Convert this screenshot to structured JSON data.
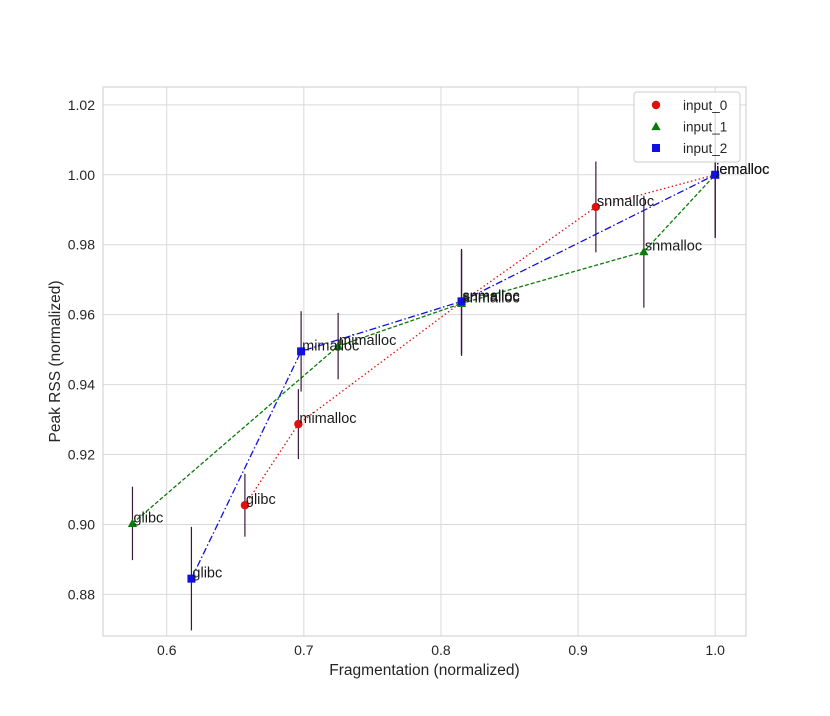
{
  "chart_data": {
    "type": "scatter",
    "title": "",
    "xlabel": "Fragmentation (normalized)",
    "ylabel": "Peak RSS (normalized)",
    "xlim": [
      0.5535,
      1.0225
    ],
    "ylim": [
      0.8681,
      1.0251
    ],
    "xticks": [
      0.6,
      0.7,
      0.8,
      0.9,
      1.0
    ],
    "xtick_labels": [
      "0.6",
      "0.7",
      "0.8",
      "0.9",
      "1.0"
    ],
    "yticks": [
      0.88,
      0.9,
      0.92,
      0.94,
      0.96,
      0.98,
      1.0,
      1.02
    ],
    "ytick_labels": [
      "0.88",
      "0.90",
      "0.92",
      "0.94",
      "0.96",
      "0.98",
      "1.00",
      "1.02"
    ],
    "grid": true,
    "legend_position": "top-right",
    "series": [
      {
        "name": "input_0",
        "color": "#e01010",
        "marker": "circle",
        "line_style": "dotted",
        "points": [
          {
            "label": "glibc",
            "x": 0.657,
            "y": 0.9055,
            "err": 0.009
          },
          {
            "label": "mimalloc",
            "x": 0.696,
            "y": 0.9287,
            "err": 0.01
          },
          {
            "label": "snmalloc",
            "x": 0.815,
            "y": 0.9636,
            "err": 0.015
          },
          {
            "label": "snmalloc",
            "x": 0.913,
            "y": 0.9908,
            "err": 0.013
          },
          {
            "label": "jemalloc",
            "x": 1.0,
            "y": 1.0,
            "err": 0.018
          }
        ]
      },
      {
        "name": "input_1",
        "color": "#0a7a0a",
        "marker": "triangle",
        "line_style": "dashed",
        "points": [
          {
            "label": "glibc",
            "x": 0.575,
            "y": 0.9003,
            "err": 0.0105
          },
          {
            "label": "mimalloc",
            "x": 0.725,
            "y": 0.951,
            "err": 0.0095
          },
          {
            "label": "snmalloc",
            "x": 0.815,
            "y": 0.9632,
            "err": 0.015
          },
          {
            "label": "snmalloc",
            "x": 0.948,
            "y": 0.978,
            "err": 0.016
          },
          {
            "label": "jemalloc",
            "x": 1.0,
            "y": 1.0,
            "err": 0.018
          }
        ]
      },
      {
        "name": "input_2",
        "color": "#1010e0",
        "marker": "square",
        "line_style": "dashdot",
        "points": [
          {
            "label": "glibc",
            "x": 0.618,
            "y": 0.8845,
            "err": 0.0148
          },
          {
            "label": "mimalloc",
            "x": 0.698,
            "y": 0.9495,
            "err": 0.0115
          },
          {
            "label": "snmalloc",
            "x": 0.815,
            "y": 0.9638,
            "err": 0.015
          },
          {
            "label": "jemalloc",
            "x": 1.0,
            "y": 1.0,
            "err": 0.018
          }
        ]
      }
    ],
    "errorbar_color": "#3a1a3a"
  }
}
